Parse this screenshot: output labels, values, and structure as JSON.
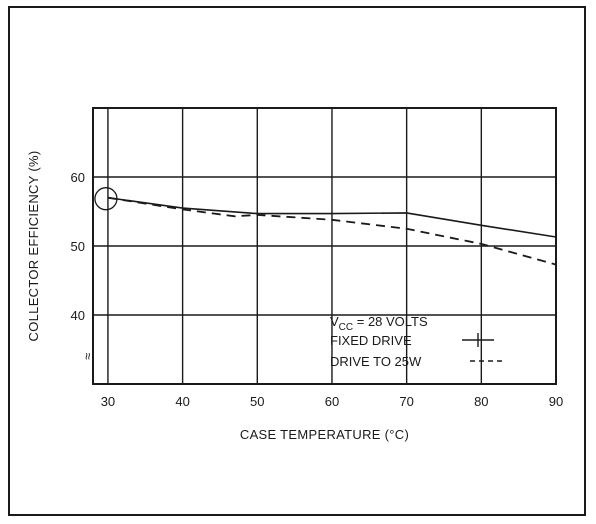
{
  "chart_data": {
    "type": "line",
    "title": "",
    "xlabel": "CASE TEMPERATURE (°C)",
    "ylabel": "COLLECTOR EFFICIENCY (%)",
    "xlim": [
      28,
      90
    ],
    "ylim": [
      30,
      70
    ],
    "x_ticks": [
      30,
      40,
      50,
      60,
      70,
      80,
      90
    ],
    "y_ticks": [
      40,
      50,
      60
    ],
    "grid": true,
    "legend": {
      "condition_prefix": "V",
      "condition_subscript": "CC",
      "condition_suffix": " =  28 VOLTS",
      "placement": "bottom-right"
    },
    "series": [
      {
        "name": "FIXED DRIVE",
        "style": "solid",
        "x": [
          30,
          40,
          50,
          60,
          70,
          80,
          90
        ],
        "y": [
          57,
          55.5,
          54.7,
          54.7,
          54.8,
          53,
          51.3
        ]
      },
      {
        "name": "DRIVE TO 25W",
        "style": "dashed",
        "x": [
          30,
          40,
          47,
          50,
          60,
          70,
          80,
          90
        ],
        "y": [
          57,
          55.3,
          54.3,
          54.5,
          53.8,
          52.5,
          50.3,
          47.3
        ]
      }
    ],
    "annotations": {
      "break_mark": "≈"
    }
  },
  "colors": {
    "ink": "#1a1a1a",
    "background": "#ffffff"
  }
}
